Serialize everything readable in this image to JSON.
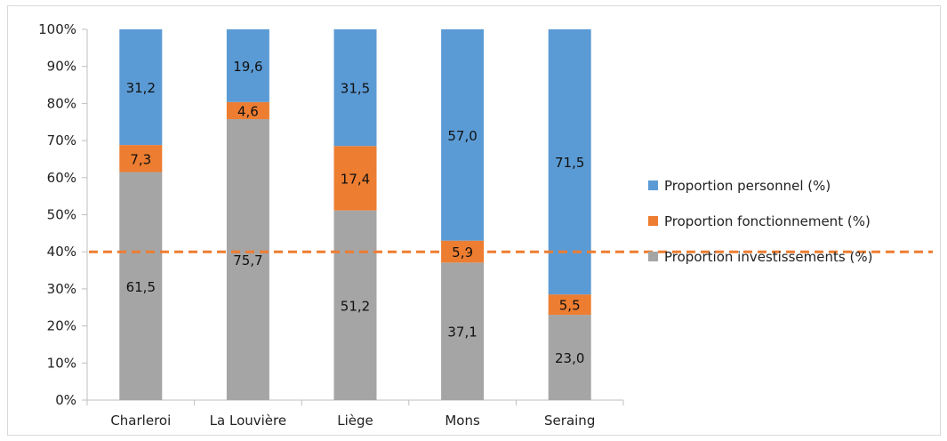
{
  "chart_data": {
    "type": "bar",
    "stacked": "percent",
    "categories": [
      "Charleroi",
      "La Louvière",
      "Liège",
      "Mons",
      "Seraing"
    ],
    "series": [
      {
        "name": "Proportion investissements (%)",
        "values": [
          61.5,
          75.7,
          51.2,
          37.1,
          23.0
        ],
        "labels": [
          "61,5",
          "75,7",
          "51,2",
          "37,1",
          "23,0"
        ],
        "color": "#a5a5a5"
      },
      {
        "name": "Proportion fonctionnement (%)",
        "values": [
          7.3,
          4.6,
          17.4,
          5.9,
          5.5
        ],
        "labels": [
          "7,3",
          "4,6",
          "17,4",
          "5,9",
          "5,5"
        ],
        "color": "#ed7d31"
      },
      {
        "name": "Proportion personnel (%)",
        "values": [
          31.2,
          19.6,
          31.5,
          57.0,
          71.5
        ],
        "labels": [
          "31,2",
          "19,6",
          "31,5",
          "57,0",
          "71,5"
        ],
        "color": "#5b9bd5"
      }
    ],
    "ylim": [
      0,
      100
    ],
    "yticks": [
      "0%",
      "10%",
      "20%",
      "30%",
      "40%",
      "50%",
      "60%",
      "70%",
      "80%",
      "90%",
      "100%"
    ],
    "reference_line": {
      "value": 40,
      "style": "dashed",
      "color": "#ed7d31"
    },
    "legend_order": [
      2,
      1,
      0
    ],
    "legend_position": "right",
    "grid": false,
    "title": "",
    "xlabel": "",
    "ylabel": ""
  }
}
